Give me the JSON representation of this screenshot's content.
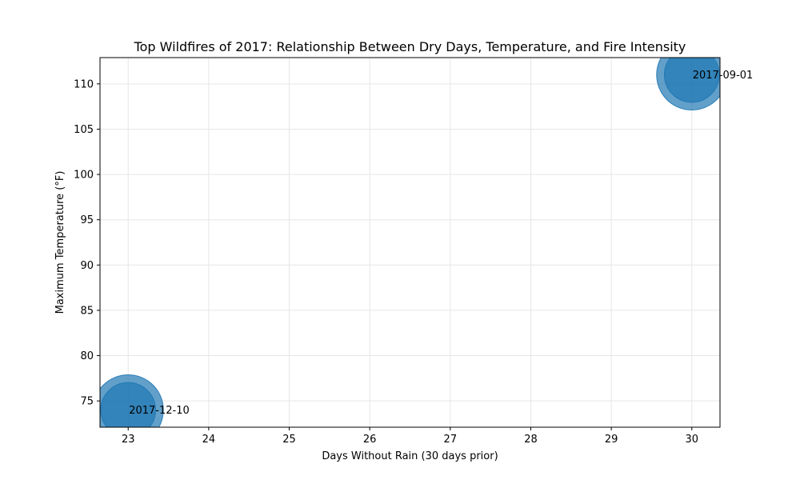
{
  "chart_data": {
    "type": "scatter",
    "title": "Top Wildfires of 2017: Relationship Between Dry Days, Temperature, and Fire Intensity",
    "xlabel": "Days Without Rain (30 days prior)",
    "ylabel": "Maximum Temperature (°F)",
    "xlim": [
      22.65,
      30.35
    ],
    "ylim": [
      72.1,
      112.9
    ],
    "xticks": [
      23,
      24,
      25,
      26,
      27,
      28,
      29,
      30
    ],
    "yticks": [
      75,
      80,
      85,
      90,
      95,
      100,
      105,
      110
    ],
    "grid": true,
    "points": [
      {
        "x": 23,
        "y": 74,
        "label": "2017-12-10",
        "bubbles": [
          1.0,
          0.78
        ]
      },
      {
        "x": 30,
        "y": 111,
        "label": "2017-09-01",
        "bubbles": [
          1.0,
          0.78
        ]
      }
    ],
    "colors": {
      "bubble": "#1f77b4",
      "grid": "#e6e6e6",
      "axis": "#000000"
    }
  }
}
